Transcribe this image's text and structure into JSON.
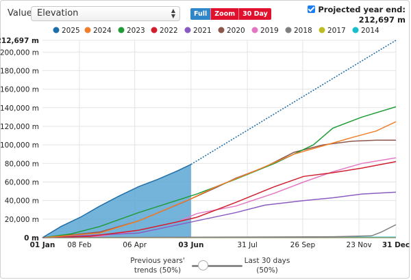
{
  "controls": {
    "value_label": "Value:",
    "value_selected": "Elevation",
    "range_buttons": [
      "Full",
      "Zoom",
      "30 Day"
    ],
    "projected_label": "Projected year end:",
    "projected_value": "212,697 m",
    "slider_left": [
      "Previous years'",
      "trends (50%)"
    ],
    "slider_right": [
      "Last 30 days",
      "(50%)"
    ]
  },
  "colors": {
    "full_button": "#2f86c9",
    "zoom_button": "#e0112d",
    "current_fill": "#5ca6d3"
  },
  "chart_data": {
    "type": "line",
    "title": "",
    "xlabel": "",
    "ylabel": "",
    "x_ticks": [
      "01 Jan",
      "08 Feb",
      "06 Apr",
      "03 Jun",
      "31 Jul",
      "26 Sep",
      "23 Nov",
      "31 Dec"
    ],
    "x_tick_days": [
      1,
      39,
      96,
      154,
      212,
      269,
      327,
      365
    ],
    "y_ticks": [
      "0 m",
      "20,000 m",
      "40,000 m",
      "60,000 m",
      "80,000 m",
      "100,000 m",
      "120,000 m",
      "140,000 m",
      "160,000 m",
      "180,000 m",
      "200,000 m",
      "212,697 m"
    ],
    "y_tick_values": [
      0,
      20000,
      40000,
      60000,
      80000,
      100000,
      120000,
      140000,
      160000,
      180000,
      200000,
      212697
    ],
    "xlim": [
      1,
      365
    ],
    "ylim": [
      0,
      212697
    ],
    "legend_position": "top",
    "series": [
      {
        "name": "2025",
        "color": "#1f6ea8",
        "points": [
          [
            1,
            0
          ],
          [
            20,
            12000
          ],
          [
            40,
            22000
          ],
          [
            60,
            34000
          ],
          [
            80,
            45000
          ],
          [
            100,
            55000
          ],
          [
            120,
            63000
          ],
          [
            140,
            72000
          ],
          [
            154,
            79000
          ]
        ]
      },
      {
        "name": "2025 projection",
        "color": "#1f6ea8",
        "dashed": true,
        "points": [
          [
            154,
            79000
          ],
          [
            365,
            212697
          ]
        ]
      },
      {
        "name": "2024",
        "color": "#f07f2b",
        "points": [
          [
            1,
            0
          ],
          [
            60,
            5000
          ],
          [
            100,
            18000
          ],
          [
            154,
            42000
          ],
          [
            180,
            55000
          ],
          [
            220,
            72000
          ],
          [
            260,
            90000
          ],
          [
            290,
            99000
          ],
          [
            320,
            108000
          ],
          [
            345,
            115000
          ],
          [
            365,
            125000
          ]
        ]
      },
      {
        "name": "2023",
        "color": "#1f9c38",
        "points": [
          [
            1,
            0
          ],
          [
            30,
            4000
          ],
          [
            60,
            12000
          ],
          [
            100,
            27000
          ],
          [
            130,
            37000
          ],
          [
            160,
            47000
          ],
          [
            200,
            63000
          ],
          [
            240,
            80000
          ],
          [
            280,
            100000
          ],
          [
            300,
            118000
          ],
          [
            330,
            130000
          ],
          [
            365,
            141000
          ]
        ]
      },
      {
        "name": "2022",
        "color": "#d11e2e",
        "points": [
          [
            1,
            0
          ],
          [
            50,
            1500
          ],
          [
            100,
            8000
          ],
          [
            140,
            17000
          ],
          [
            160,
            22000
          ],
          [
            200,
            38000
          ],
          [
            240,
            55000
          ],
          [
            270,
            66000
          ],
          [
            300,
            70000
          ],
          [
            330,
            75000
          ],
          [
            365,
            82000
          ]
        ]
      },
      {
        "name": "2021",
        "color": "#8a5cc2",
        "points": [
          [
            1,
            0
          ],
          [
            100,
            5000
          ],
          [
            150,
            16000
          ],
          [
            200,
            27000
          ],
          [
            230,
            35000
          ],
          [
            270,
            40000
          ],
          [
            300,
            43000
          ],
          [
            330,
            47000
          ],
          [
            365,
            49000
          ]
        ]
      },
      {
        "name": "2020",
        "color": "#8c564b",
        "points": [
          [
            1,
            0
          ],
          [
            60,
            6000
          ],
          [
            100,
            18000
          ],
          [
            150,
            40000
          ],
          [
            180,
            54000
          ],
          [
            200,
            64000
          ],
          [
            230,
            76000
          ],
          [
            260,
            92000
          ],
          [
            290,
            100000
          ],
          [
            320,
            104000
          ],
          [
            345,
            105000
          ],
          [
            365,
            105000
          ]
        ]
      },
      {
        "name": "2019",
        "color": "#e377c2",
        "points": [
          [
            1,
            0
          ],
          [
            60,
            1500
          ],
          [
            100,
            8000
          ],
          [
            140,
            17000
          ],
          [
            160,
            26000
          ],
          [
            200,
            34000
          ],
          [
            240,
            48000
          ],
          [
            270,
            60000
          ],
          [
            300,
            71000
          ],
          [
            330,
            80000
          ],
          [
            365,
            86000
          ]
        ]
      },
      {
        "name": "2018",
        "color": "#7f7f7f",
        "points": [
          [
            1,
            0
          ],
          [
            300,
            1000
          ],
          [
            340,
            2000
          ],
          [
            350,
            6000
          ],
          [
            365,
            14000
          ]
        ]
      },
      {
        "name": "2017",
        "color": "#bcbd22",
        "points": [
          [
            1,
            0
          ],
          [
            365,
            0
          ]
        ]
      },
      {
        "name": "2014",
        "color": "#17becf",
        "points": [
          [
            1,
            0
          ],
          [
            365,
            500
          ]
        ]
      }
    ]
  }
}
